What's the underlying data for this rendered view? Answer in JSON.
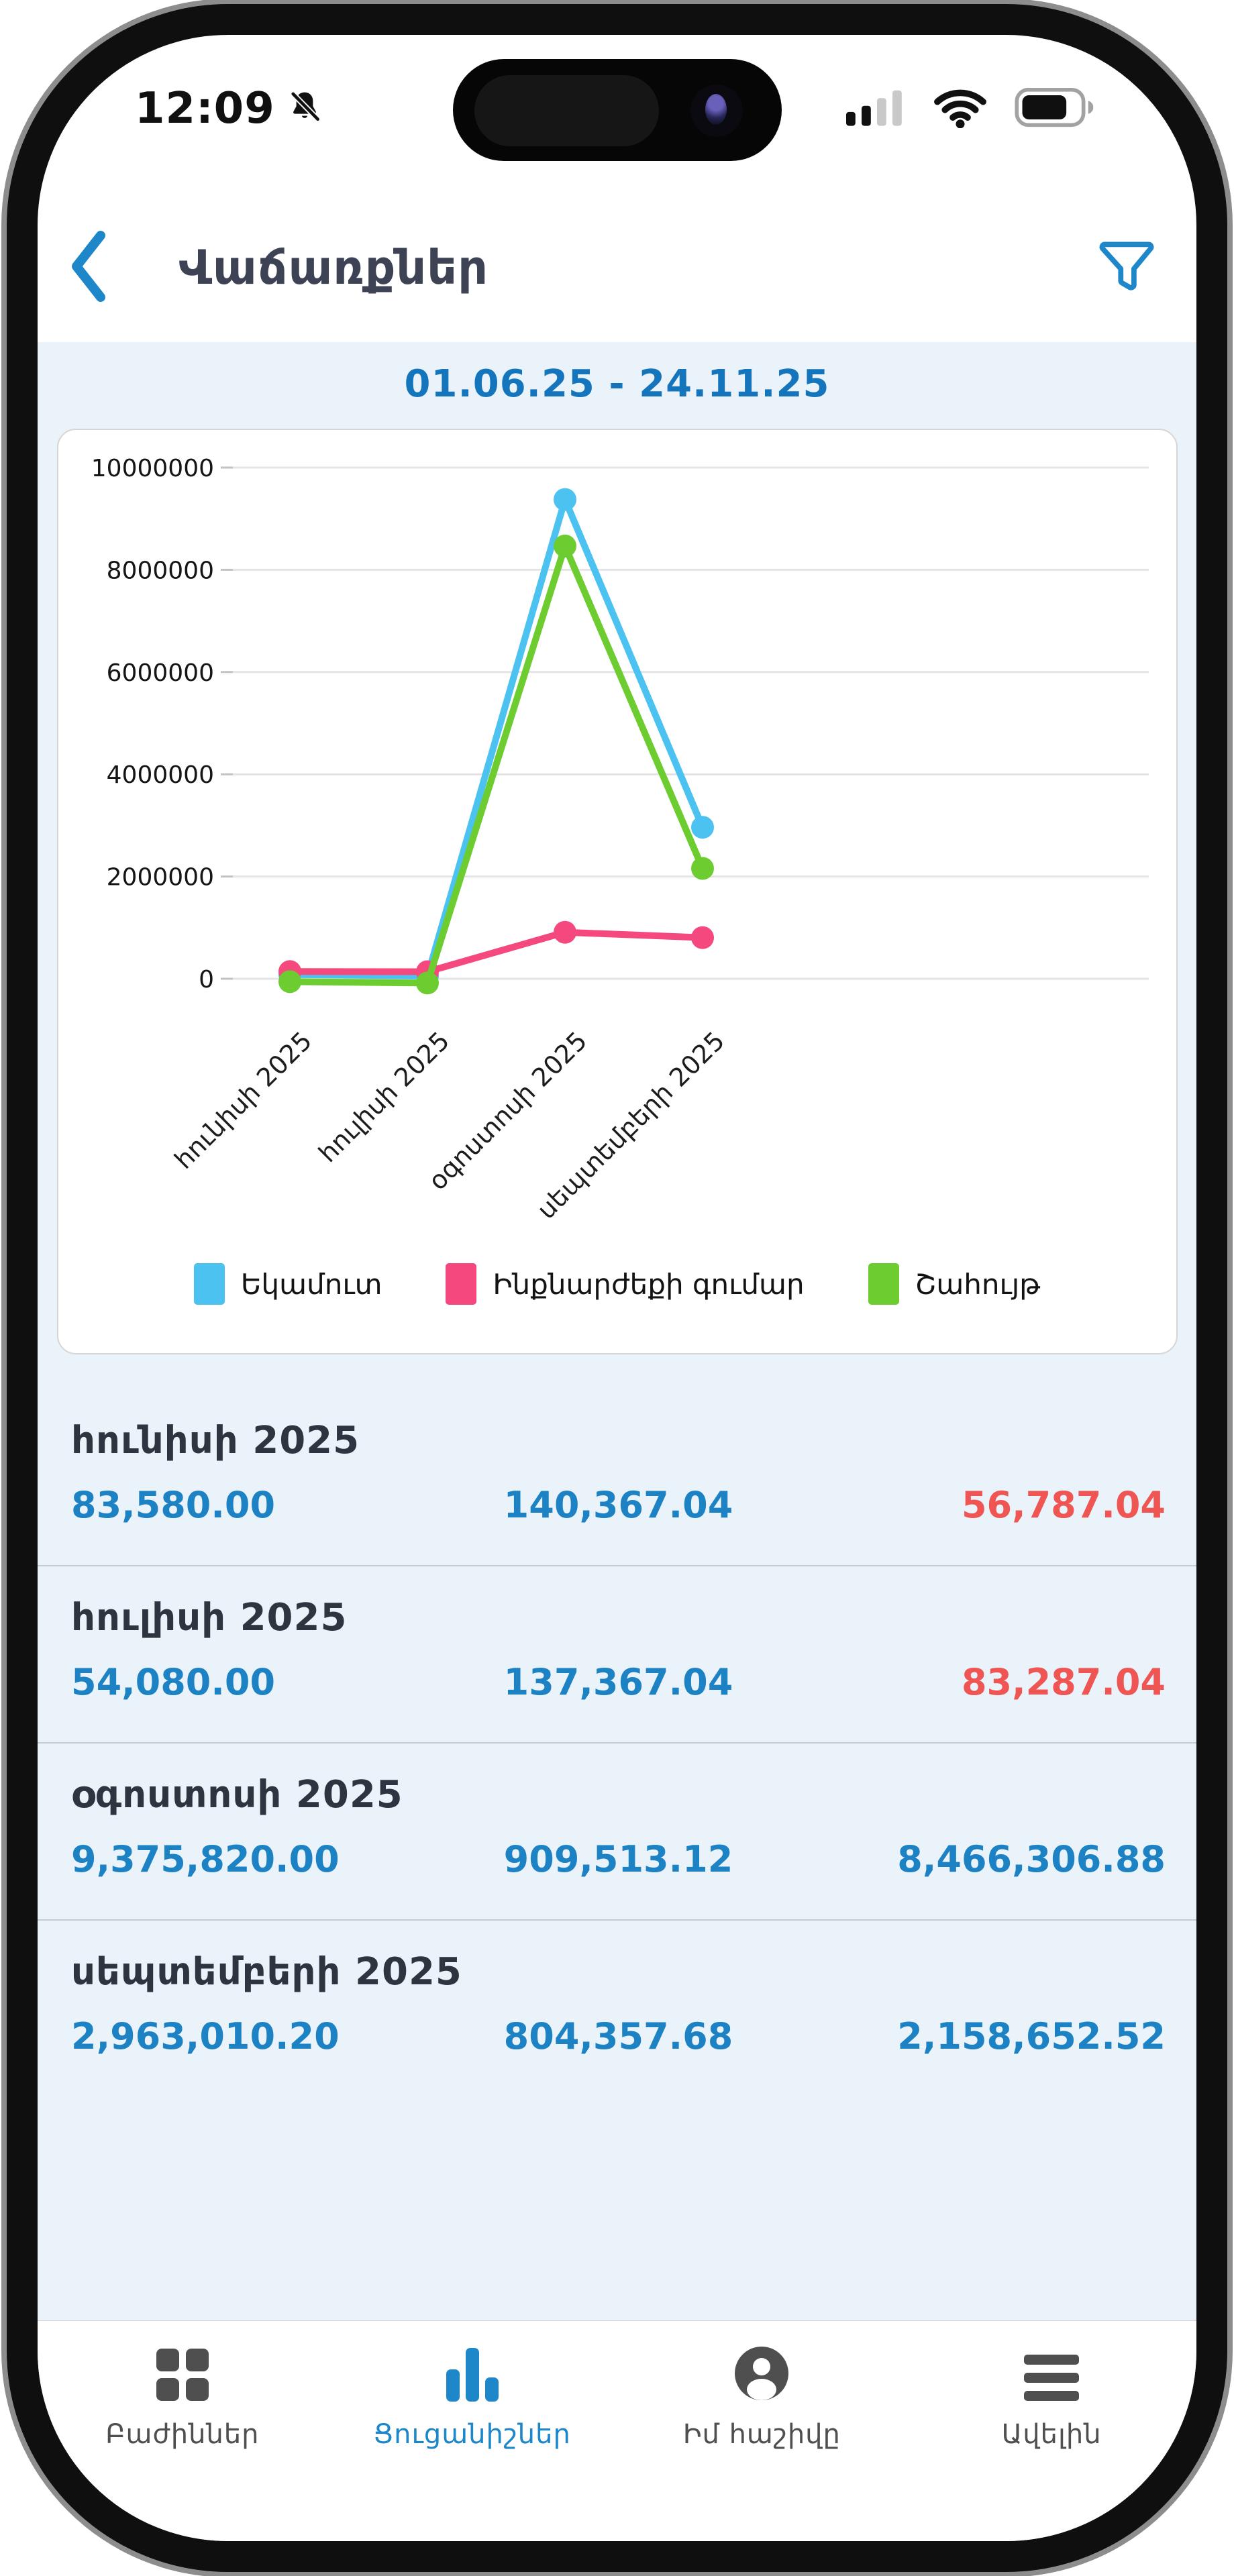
{
  "status_bar": {
    "time": "12:09",
    "muted_icon": "bell-slash-icon",
    "signal_bars_filled": 2,
    "signal_bars_total": 4,
    "wifi_icon": "wifi-full",
    "battery_fill_ratio": 0.72
  },
  "header": {
    "back_icon": "chevron-left-icon",
    "title": "Վաճառքներ",
    "filter_icon": "filter-funnel-icon"
  },
  "date_range": "01.06.25 - 24.11.25",
  "chart_data": {
    "type": "line",
    "categories": [
      "հունիսի 2025",
      "հուլիսի 2025",
      "օգոստոսի 2025",
      "սեպտեմբերի 2025"
    ],
    "series": [
      {
        "name": "Եկամուտ",
        "color": "#4cc2f1",
        "values": [
          83580.0,
          54080.0,
          9375820.0,
          2963010.2
        ]
      },
      {
        "name": "Ինքնարժեքի գումար",
        "color": "#f4487e",
        "values": [
          140367.04,
          137367.04,
          909513.12,
          804357.68
        ]
      },
      {
        "name": "Շահույթ",
        "color": "#6ccc30",
        "values": [
          -56787.04,
          -83287.04,
          8466306.88,
          2158652.52
        ]
      }
    ],
    "ylim": [
      0,
      10000000
    ],
    "y_ticks": [
      0,
      2000000,
      4000000,
      6000000,
      8000000,
      10000000
    ],
    "grid": true,
    "legend_position": "bottom"
  },
  "rows": [
    {
      "month": "հունիսի 2025",
      "values": [
        "83,580.00",
        "140,367.04",
        "56,787.04"
      ],
      "value_styles": [
        "blue",
        "blue",
        "red"
      ]
    },
    {
      "month": "հուլիսի 2025",
      "values": [
        "54,080.00",
        "137,367.04",
        "83,287.04"
      ],
      "value_styles": [
        "blue",
        "blue",
        "red"
      ]
    },
    {
      "month": "օգոստոսի 2025",
      "values": [
        "9,375,820.00",
        "909,513.12",
        "8,466,306.88"
      ],
      "value_styles": [
        "blue",
        "blue",
        "blue"
      ]
    },
    {
      "month": "սեպտեմբերի 2025",
      "values": [
        "2,963,010.20",
        "804,357.68",
        "2,158,652.52"
      ],
      "value_styles": [
        "blue",
        "blue",
        "blue"
      ]
    }
  ],
  "tab_bar": {
    "items": [
      {
        "label": "Բաժիններ",
        "icon": "grid-icon",
        "active": false
      },
      {
        "label": "Ցուցանիշներ",
        "icon": "bar-chart-icon",
        "active": true
      },
      {
        "label": "Իմ հաշիվը",
        "icon": "user-icon",
        "active": false
      },
      {
        "label": "Ավելին",
        "icon": "menu-icon",
        "active": false
      }
    ]
  },
  "colors": {
    "accent_blue": "#1e87c9",
    "value_blue": "#1d82c4",
    "negative_red": "#ef5552",
    "section_bg": "#eaf3fa",
    "title_text": "#3d4354"
  }
}
